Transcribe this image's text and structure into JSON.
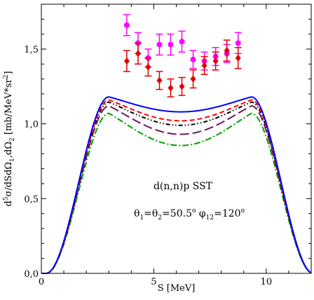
{
  "chart_data": {
    "type": "line",
    "title": "",
    "xlabel": "S [MeV]",
    "ylabel": "d5σ/dSdΩ1dΩ2 [mb/MeV*sr2]",
    "xlim": [
      0,
      12
    ],
    "ylim": [
      0,
      1.8
    ],
    "x_ticks": [
      0,
      5,
      10
    ],
    "x_tick_labels": [
      "0",
      "5",
      "10"
    ],
    "y_ticks": [
      0,
      0.5,
      1.0,
      1.5
    ],
    "y_tick_labels": [
      "0,0",
      "0,5",
      "1,0",
      "1,5"
    ],
    "grid": false,
    "legend": "none",
    "annotations": {
      "reaction": "d(n,n)p SST",
      "angles": "θ1=θ2=50.5o φ12=120o"
    },
    "curve_shape": {
      "x_rise_start": 0.2,
      "x_peak_left": 3.0,
      "x_mid": 6.2,
      "x_peak_right": 9.35,
      "x_fall_end": 12.1
    },
    "series": [
      {
        "style": "solid",
        "color": "#0000ff",
        "peak": 1.18,
        "mid": 1.08
      },
      {
        "style": "dashed",
        "color": "#ff0000",
        "peak": 1.16,
        "mid": 1.02
      },
      {
        "style": "dash-dot-dot",
        "color": "#000000",
        "peak": 1.145,
        "mid": 0.99
      },
      {
        "style": "long-dash",
        "color": "#6b1a5a",
        "peak": 1.12,
        "mid": 0.93
      },
      {
        "style": "dash-dot",
        "color": "#00a000",
        "peak": 1.07,
        "mid": 0.855
      }
    ],
    "data_sets": [
      {
        "marker": "circle",
        "color": "#ff00ff",
        "points": [
          {
            "x": 3.8,
            "y": 1.66,
            "err": 0.07
          },
          {
            "x": 4.3,
            "y": 1.54,
            "err": 0.07
          },
          {
            "x": 4.75,
            "y": 1.44,
            "err": 0.06
          },
          {
            "x": 5.25,
            "y": 1.53,
            "err": 0.07
          },
          {
            "x": 5.75,
            "y": 1.53,
            "err": 0.07
          },
          {
            "x": 6.25,
            "y": 1.55,
            "err": 0.07
          },
          {
            "x": 6.75,
            "y": 1.43,
            "err": 0.06
          },
          {
            "x": 7.25,
            "y": 1.42,
            "err": 0.06
          },
          {
            "x": 7.75,
            "y": 1.45,
            "err": 0.06
          },
          {
            "x": 8.25,
            "y": 1.47,
            "err": 0.06
          },
          {
            "x": 8.75,
            "y": 1.54,
            "err": 0.07
          }
        ]
      },
      {
        "marker": "diamond",
        "color": "#e00000",
        "points": [
          {
            "x": 3.8,
            "y": 1.42,
            "err": 0.07
          },
          {
            "x": 4.3,
            "y": 1.47,
            "err": 0.07
          },
          {
            "x": 4.75,
            "y": 1.38,
            "err": 0.06
          },
          {
            "x": 5.25,
            "y": 1.29,
            "err": 0.06
          },
          {
            "x": 5.75,
            "y": 1.24,
            "err": 0.06
          },
          {
            "x": 6.25,
            "y": 1.25,
            "err": 0.06
          },
          {
            "x": 6.75,
            "y": 1.3,
            "err": 0.06
          },
          {
            "x": 7.25,
            "y": 1.39,
            "err": 0.06
          },
          {
            "x": 7.75,
            "y": 1.42,
            "err": 0.06
          },
          {
            "x": 8.25,
            "y": 1.49,
            "err": 0.07
          },
          {
            "x": 8.75,
            "y": 1.44,
            "err": 0.07
          }
        ]
      }
    ]
  }
}
